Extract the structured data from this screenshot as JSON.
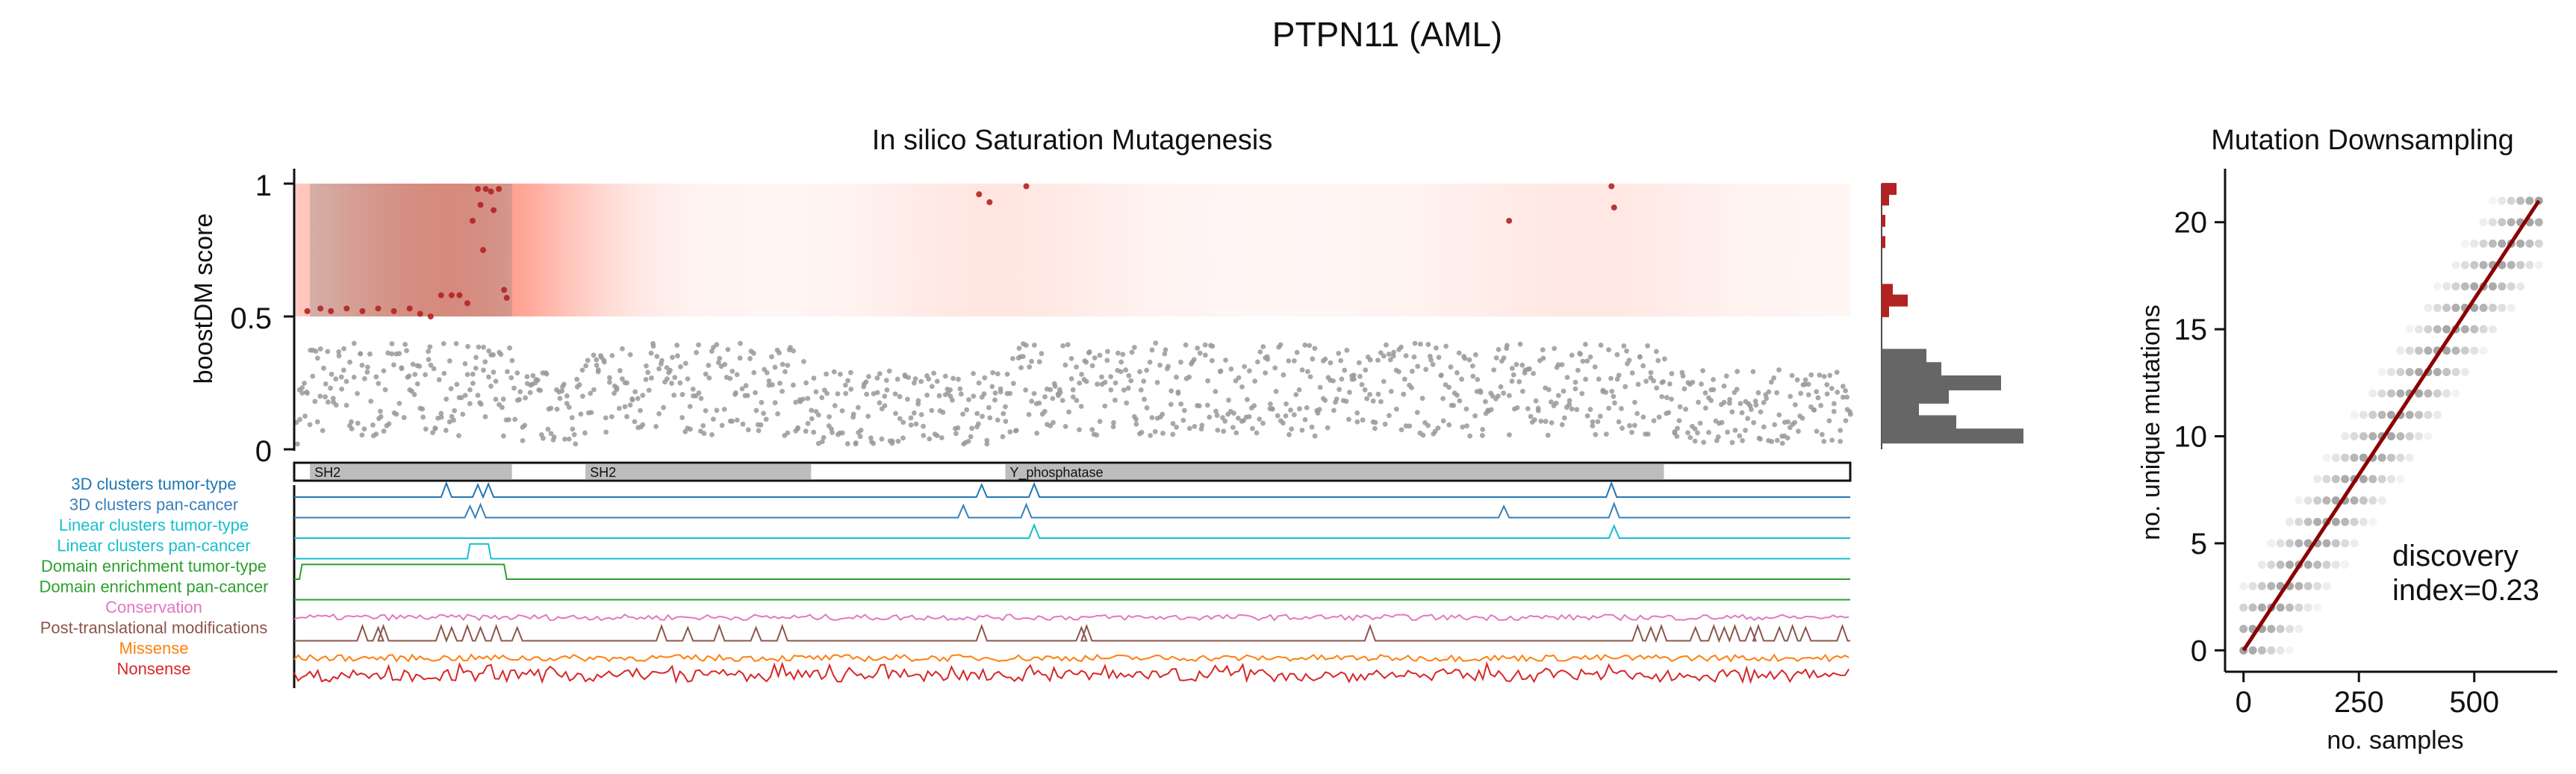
{
  "figure": {
    "title": "PTPN11 (AML)"
  },
  "chart_data": [
    {
      "type": "scatter",
      "title": "In silico Saturation Mutagenesis",
      "ylabel": "boostDM score",
      "ylim": [
        0,
        1
      ],
      "yticks": [
        "0",
        "0.5",
        "1"
      ],
      "threshold": 0.5,
      "protein_length": 593,
      "domains": [
        {
          "name": "SH2",
          "start": 6,
          "end": 83
        },
        {
          "name": "SH2",
          "start": 111,
          "end": 197
        },
        {
          "name": "Y_phosphatase",
          "start": 271,
          "end": 522
        }
      ],
      "driver_points": [
        {
          "x": 5,
          "y": 0.52
        },
        {
          "x": 10,
          "y": 0.53
        },
        {
          "x": 14,
          "y": 0.52
        },
        {
          "x": 20,
          "y": 0.53
        },
        {
          "x": 26,
          "y": 0.52
        },
        {
          "x": 32,
          "y": 0.53
        },
        {
          "x": 38,
          "y": 0.52
        },
        {
          "x": 44,
          "y": 0.53
        },
        {
          "x": 48,
          "y": 0.51
        },
        {
          "x": 52,
          "y": 0.5
        },
        {
          "x": 56,
          "y": 0.58
        },
        {
          "x": 60,
          "y": 0.58
        },
        {
          "x": 63,
          "y": 0.58
        },
        {
          "x": 66,
          "y": 0.55
        },
        {
          "x": 68,
          "y": 0.86
        },
        {
          "x": 70,
          "y": 0.98
        },
        {
          "x": 71,
          "y": 0.92
        },
        {
          "x": 72,
          "y": 0.75
        },
        {
          "x": 73,
          "y": 0.98
        },
        {
          "x": 75,
          "y": 0.97
        },
        {
          "x": 76,
          "y": 0.9
        },
        {
          "x": 78,
          "y": 0.98
        },
        {
          "x": 80,
          "y": 0.6
        },
        {
          "x": 81,
          "y": 0.57
        },
        {
          "x": 261,
          "y": 0.96
        },
        {
          "x": 265,
          "y": 0.93
        },
        {
          "x": 279,
          "y": 0.99
        },
        {
          "x": 463,
          "y": 0.86
        },
        {
          "x": 502,
          "y": 0.99
        },
        {
          "x": 503,
          "y": 0.91
        }
      ],
      "right_histogram": {
        "driver_bins": [
          {
            "y": 0.98,
            "count": 4
          },
          {
            "y": 0.94,
            "count": 2
          },
          {
            "y": 0.86,
            "count": 1
          },
          {
            "y": 0.78,
            "count": 1
          },
          {
            "y": 0.6,
            "count": 3
          },
          {
            "y": 0.56,
            "count": 7
          },
          {
            "y": 0.52,
            "count": 2
          }
        ],
        "passenger_bins": [
          {
            "y": 0.35,
            "count": 12
          },
          {
            "y": 0.3,
            "count": 16
          },
          {
            "y": 0.25,
            "count": 32
          },
          {
            "y": 0.2,
            "count": 18
          },
          {
            "y": 0.15,
            "count": 10
          },
          {
            "y": 0.1,
            "count": 20
          },
          {
            "y": 0.05,
            "count": 38
          }
        ]
      },
      "tracks": [
        {
          "label": "3D clusters tumor-type",
          "color": "#1f77b4",
          "peaks": [
            {
              "x": 58,
              "h": 0.85
            },
            {
              "x": 70,
              "h": 0.75
            },
            {
              "x": 74,
              "h": 0.8
            },
            {
              "x": 262,
              "h": 0.75
            },
            {
              "x": 282,
              "h": 0.8
            },
            {
              "x": 502,
              "h": 0.85
            }
          ]
        },
        {
          "label": "3D clusters pan-cancer",
          "color": "#3a7fb8",
          "peaks": [
            {
              "x": 67,
              "h": 0.7
            },
            {
              "x": 71,
              "h": 0.8
            },
            {
              "x": 255,
              "h": 0.75
            },
            {
              "x": 279,
              "h": 0.8
            },
            {
              "x": 461,
              "h": 0.7
            },
            {
              "x": 503,
              "h": 0.85
            }
          ]
        },
        {
          "label": "Linear clusters tumor-type",
          "color": "#17becf",
          "peaks": [
            {
              "x": 282,
              "h": 0.8
            },
            {
              "x": 503,
              "h": 0.75
            }
          ]
        },
        {
          "label": "Linear clusters pan-cancer",
          "color": "#17becf",
          "blocks": [
            {
              "start": 67,
              "end": 74,
              "h": 0.9
            }
          ]
        },
        {
          "label": "Domain enrichment tumor-type",
          "color": "#2ca02c",
          "blocks": [
            {
              "start": 3,
              "end": 80,
              "h": 0.9
            }
          ]
        },
        {
          "label": "Domain enrichment pan-cancer",
          "color": "#2ca02c",
          "blocks": []
        },
        {
          "label": "Conservation",
          "color": "#e377c2",
          "noise": 0.35
        },
        {
          "label": "Post-translational modifications",
          "color": "#8c564b",
          "peaks": [
            {
              "x": 26,
              "h": 0.9
            },
            {
              "x": 32,
              "h": 0.8
            },
            {
              "x": 34,
              "h": 0.9
            },
            {
              "x": 56,
              "h": 0.9
            },
            {
              "x": 60,
              "h": 0.8
            },
            {
              "x": 66,
              "h": 0.9
            },
            {
              "x": 71,
              "h": 0.8
            },
            {
              "x": 77,
              "h": 0.9
            },
            {
              "x": 85,
              "h": 0.8
            },
            {
              "x": 140,
              "h": 0.9
            },
            {
              "x": 150,
              "h": 0.8
            },
            {
              "x": 162,
              "h": 0.9
            },
            {
              "x": 176,
              "h": 0.8
            },
            {
              "x": 186,
              "h": 0.9
            },
            {
              "x": 262,
              "h": 0.9
            },
            {
              "x": 300,
              "h": 0.8
            },
            {
              "x": 302,
              "h": 0.9
            },
            {
              "x": 410,
              "h": 0.9
            },
            {
              "x": 512,
              "h": 0.9
            },
            {
              "x": 517,
              "h": 0.8
            },
            {
              "x": 521,
              "h": 0.9
            },
            {
              "x": 534,
              "h": 0.8
            },
            {
              "x": 541,
              "h": 0.9
            },
            {
              "x": 545,
              "h": 0.8
            },
            {
              "x": 549,
              "h": 0.9
            },
            {
              "x": 555,
              "h": 0.8
            },
            {
              "x": 558,
              "h": 0.9
            },
            {
              "x": 566,
              "h": 0.8
            },
            {
              "x": 571,
              "h": 0.9
            },
            {
              "x": 576,
              "h": 0.8
            },
            {
              "x": 590,
              "h": 0.9
            }
          ]
        },
        {
          "label": "Missense",
          "color": "#ff7f0e",
          "noise": 0.4
        },
        {
          "label": "Nonsense",
          "color": "#d62728",
          "noise": 0.75
        }
      ]
    },
    {
      "type": "scatter",
      "title": "Mutation Downsampling",
      "xlabel": "no. samples",
      "ylabel": "no. unique mutations",
      "xlim": [
        -40,
        680
      ],
      "ylim": [
        -1,
        22.5
      ],
      "xticks": [
        0,
        250,
        500
      ],
      "yticks": [
        0,
        5,
        10,
        15,
        20
      ],
      "fit_line": {
        "x": [
          0,
          640
        ],
        "y": [
          0,
          21
        ],
        "color": "#8b0000"
      },
      "annotation": {
        "line1": "discovery",
        "line2": "index=0.23",
        "color": "#8b0000"
      },
      "max_samples": 640,
      "max_mutations": 21
    }
  ]
}
